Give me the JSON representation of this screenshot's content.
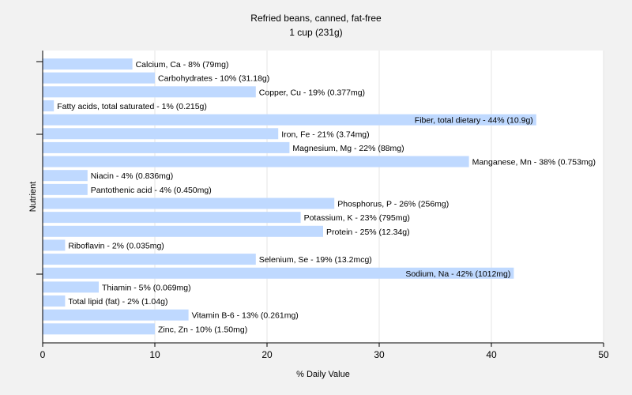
{
  "chart_data": {
    "type": "bar",
    "orientation": "horizontal",
    "title": "Refried beans, canned, fat-free",
    "subtitle": "1 cup (231g)",
    "xlabel": "% Daily Value",
    "ylabel": "Nutrient",
    "xlim": [
      0,
      50
    ],
    "xticks": [
      0,
      10,
      20,
      30,
      40,
      50
    ],
    "grid": "vertical",
    "colors": {
      "bar": "#bfd9ff",
      "background": "#f2f2f2",
      "plot": "#ffffff",
      "grid": "#e6e6e6",
      "axis": "#000000"
    },
    "categories": [
      "Calcium, Ca",
      "Carbohydrates",
      "Copper, Cu",
      "Fatty acids, total saturated",
      "Fiber, total dietary",
      "Iron, Fe",
      "Magnesium, Mg",
      "Manganese, Mn",
      "Niacin",
      "Pantothenic acid",
      "Phosphorus, P",
      "Potassium, K",
      "Protein",
      "Riboflavin",
      "Selenium, Se",
      "Sodium, Na",
      "Thiamin",
      "Total lipid (fat)",
      "Vitamin B-6",
      "Zinc, Zn"
    ],
    "values": [
      8,
      10,
      19,
      1,
      44,
      21,
      22,
      38,
      4,
      4,
      26,
      23,
      25,
      2,
      19,
      42,
      5,
      2,
      13,
      10
    ],
    "labels": [
      "Calcium, Ca - 8% (79mg)",
      "Carbohydrates - 10% (31.18g)",
      "Copper, Cu - 19% (0.377mg)",
      "Fatty acids, total saturated - 1% (0.215g)",
      "Fiber, total dietary - 44% (10.9g)",
      "Iron, Fe - 21% (3.74mg)",
      "Magnesium, Mg - 22% (88mg)",
      "Manganese, Mn - 38% (0.753mg)",
      "Niacin - 4% (0.836mg)",
      "Pantothenic acid - 4% (0.450mg)",
      "Phosphorus, P - 26% (256mg)",
      "Potassium, K - 23% (795mg)",
      "Protein - 25% (12.34g)",
      "Riboflavin - 2% (0.035mg)",
      "Selenium, Se - 19% (13.2mcg)",
      "Sodium, Na - 42% (1012mg)",
      "Thiamin - 5% (0.069mg)",
      "Total lipid (fat) - 2% (1.04g)",
      "Vitamin B-6 - 13% (0.261mg)",
      "Zinc, Zn - 10% (1.50mg)"
    ]
  }
}
